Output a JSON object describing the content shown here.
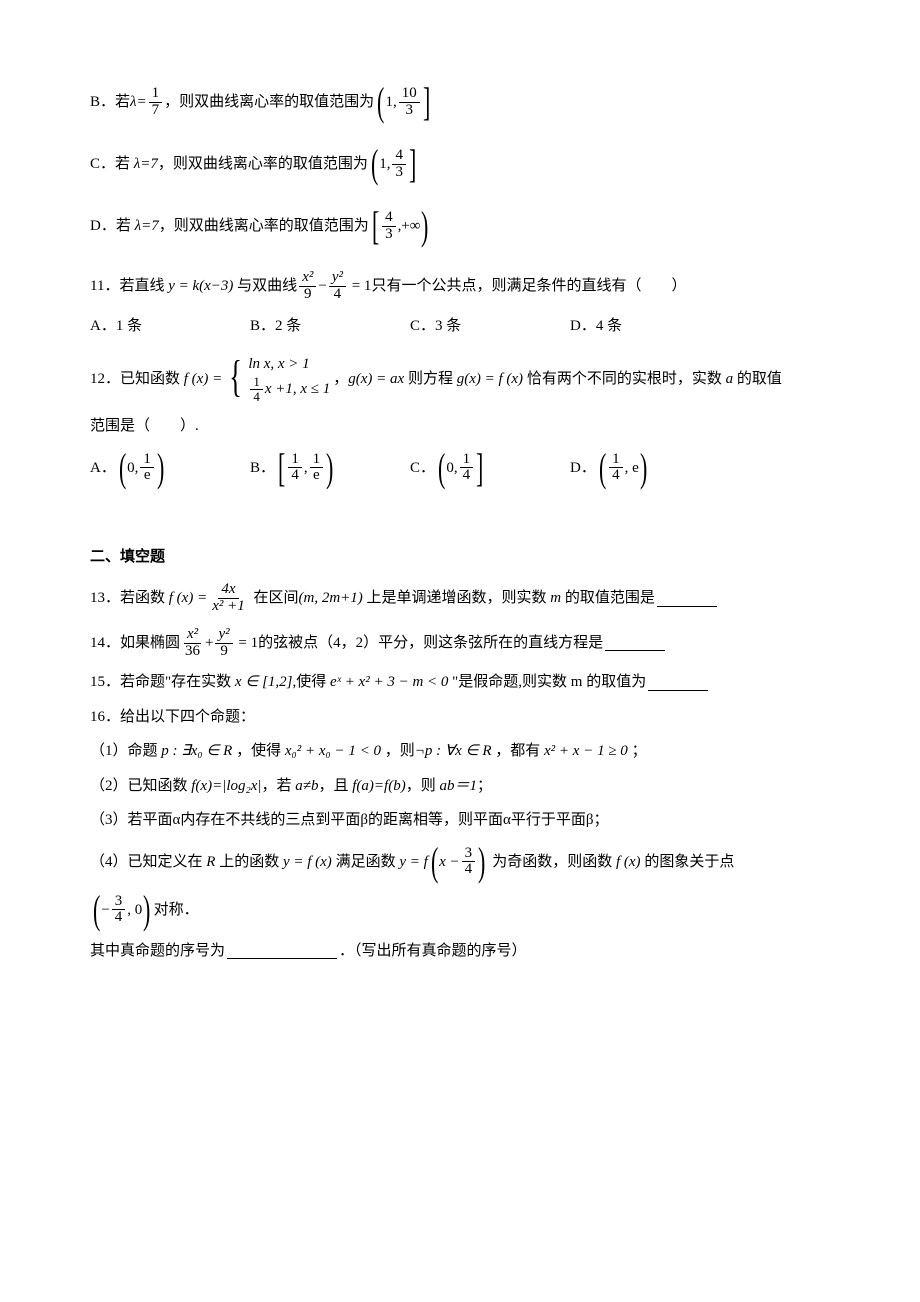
{
  "q10": {
    "B": {
      "prefix": "B．若",
      "lambda_lhs": "λ=",
      "lambda_n": "1",
      "lambda_d": "7",
      "mid": "，则双曲线离心率的取值范围为",
      "pair_l": "1,",
      "pair_n": "10",
      "pair_d": "3"
    },
    "C": {
      "prefix": "C．若",
      "lambda": "λ=7",
      "mid": "，则双曲线离心率的取值范围为",
      "pair_l": "1,",
      "pair_n": "4",
      "pair_d": "3"
    },
    "D": {
      "prefix": "D．若",
      "lambda": "λ=7",
      "mid": "，则双曲线离心率的取值范围为",
      "pair_n": "4",
      "pair_d": "3",
      "tail": ",+∞"
    }
  },
  "q11": {
    "stem_a": "11．若直线",
    "line": "y = k(x−3)",
    "stem_b": "与双曲线",
    "frac1n": "x²",
    "frac1d": "9",
    "minus": "−",
    "frac2n": "y²",
    "frac2d": "4",
    "eq": "= 1",
    "stem_c": "只有一个公共点，则满足条件的直线有（　　）",
    "choices": {
      "A": "A．1 条",
      "B": "B．2 条",
      "C": "C．3 条",
      "D": "D．4 条"
    }
  },
  "q12": {
    "stem_a": "12．已知函数",
    "fx": "f (x) =",
    "case1": "ln x, x > 1",
    "case2a_n": "1",
    "case2a_d": "4",
    "case2b": "x +1, x ≤ 1",
    "comma": "，",
    "gx": "g(x) = ax",
    "mid": "则方程",
    "eq": "g(x) = f (x)",
    "tail": "恰有两个不同的实根时，实数",
    "var": "a",
    "tail2": "的取值",
    "tail3": "范围是（　　）.",
    "choices": {
      "A_pre": "A．",
      "A_l": "0,",
      "A_n": "1",
      "A_d": "e",
      "B_pre": "B．",
      "B_ln": "1",
      "B_ld": "4",
      "B_sep": ",",
      "B_rn": "1",
      "B_rd": "e",
      "C_pre": "C．",
      "C_l": "0,",
      "C_n": "1",
      "C_d": "4",
      "D_pre": "D．",
      "D_n": "1",
      "D_d": "4",
      "D_tail": ", e"
    }
  },
  "section2": "二、填空题",
  "q13": {
    "a": "13．若函数",
    "fx": "f (x) =",
    "num": "4x",
    "den": "x² +1",
    "b": "在区间",
    "interval": "(m, 2m+1)",
    "c": "上是单调递增函数，则实数",
    "var": "m",
    "d": "的取值范围是"
  },
  "q14": {
    "a": "14．如果椭圆",
    "f1n": "x²",
    "f1d": "36",
    "plus": "+",
    "f2n": "y²",
    "f2d": "9",
    "eq": "= 1",
    "b": "的弦被点（4，2）平分，则这条弦所在的直线方程是"
  },
  "q15": {
    "a": "15．若命题\"存在实数",
    "set": "x ∈ [1,2]",
    "b": ",使得",
    "expr": "eˣ + x² + 3 − m < 0",
    "c": "\"是假命题,则实数 m 的取值为"
  },
  "q16": {
    "head": "16．给出以下四个命题：",
    "p1a": "（1）命题",
    "p1p": "p : ∃x₀ ∈ R",
    "p1b": "，使得",
    "p1e1": "x₀² + x₀ − 1 < 0",
    "p1c": "，则",
    "p1np": "¬p : ∀x ∈ R",
    "p1d": "，都有",
    "p1e2": "x² + x − 1 ≥ 0",
    "p1end": "；",
    "p2a": "（2）已知函数",
    "p2fx": "f(x)=|log₂x|",
    "p2b": "，若",
    "p2c1": "a≠b",
    "p2c": "，且",
    "p2c2": "f(a)=f(b)",
    "p2d": "，则",
    "p2c3": "ab＝1",
    "p2e": "；",
    "p3": "（3）若平面α内存在不共线的三点到平面β的距离相等，则平面α平行于平面β；",
    "p4a": "（4）已知定义在",
    "p4R": "R",
    "p4b": "上的函数",
    "p4fx": "y = f (x)",
    "p4c": "满足函数",
    "p4g1": "y = f",
    "p4argpre": "x −",
    "p4n": "3",
    "p4d": "4",
    "p4e": "为奇函数，则函数",
    "p4fx2": "f (x)",
    "p4f": "的图象关于点",
    "p4ptpre": "−",
    "p4ptn": "3",
    "p4ptd": "4",
    "p4pttail": ", 0",
    "p4end": "对称．",
    "tail": "其中真命题的序号为",
    "tail2": "．（写出所有真命题的序号）"
  }
}
